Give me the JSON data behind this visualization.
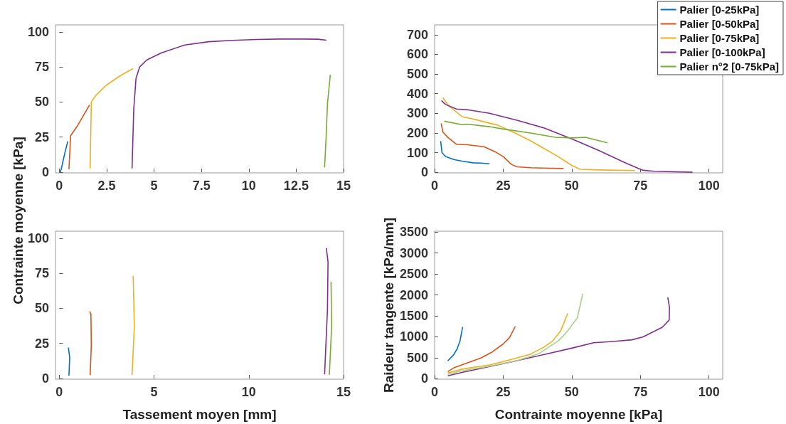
{
  "chart_data": [
    {
      "type": "line",
      "marker": "none",
      "legend": false,
      "xlim": [
        -0.2,
        15
      ],
      "xticks": [
        0,
        2.5,
        5,
        7.5,
        10,
        12.5,
        15
      ],
      "ylim": [
        -0.5,
        105
      ],
      "yticks": [
        0,
        25,
        50,
        75,
        100
      ],
      "series": [
        {
          "color": "#0072bd",
          "x": [
            0.05,
            0.1,
            0.2,
            0.3,
            0.45
          ],
          "values": [
            0,
            2,
            8,
            14,
            22
          ]
        },
        {
          "color": "#d95319",
          "x": [
            0.51,
            0.6,
            0.98,
            1.6
          ],
          "values": [
            2,
            26,
            33.5,
            48
          ]
        },
        {
          "color": "#edb120",
          "x": [
            1.63,
            1.69,
            1.92,
            2.48,
            3.24,
            3.89
          ],
          "values": [
            2.7,
            50,
            54.6,
            62,
            69,
            73.8
          ]
        },
        {
          "color": "#7e2f8e",
          "x": [
            3.84,
            3.93,
            4.05,
            4.24,
            4.62,
            5.37,
            6.63,
            7.88,
            9.13,
            10.4,
            11.6,
            12.9,
            13.65,
            14.09
          ],
          "values": [
            2.7,
            45,
            67,
            75,
            80,
            85,
            90.7,
            93,
            94,
            94.6,
            94.9,
            94.9,
            94.8,
            94.1
          ]
        },
        {
          "color": "#77ac30",
          "x": [
            14.0,
            14.09,
            14.15,
            14.3
          ],
          "values": [
            3.4,
            28,
            48.7,
            69.4
          ]
        }
      ]
    },
    {
      "type": "line",
      "marker": "none",
      "legend": "top right",
      "xlim": [
        0,
        105
      ],
      "xticks": [
        0,
        25,
        50,
        75,
        100
      ],
      "ylim": [
        -3,
        750
      ],
      "yticks": [
        0,
        100,
        200,
        300,
        400,
        500,
        600,
        700
      ],
      "series": [
        {
          "name": "Palier [0-25kPa]",
          "color": "#0072bd",
          "x": [
            2.2,
            2.7,
            4,
            7,
            10,
            14,
            17,
            20
          ],
          "values": [
            159,
            100,
            80,
            65,
            57,
            48,
            47,
            43
          ]
        },
        {
          "name": "Palier [0-50kPa]",
          "color": "#d95319",
          "x": [
            2.4,
            3,
            5,
            8,
            12,
            18,
            22,
            25,
            28,
            30,
            35,
            47
          ],
          "values": [
            248,
            205,
            175,
            142,
            140,
            130,
            105,
            80,
            40,
            28,
            23,
            19
          ]
        },
        {
          "name": "Palier [0-75kPa]",
          "color": "#edb120",
          "x": [
            3,
            5,
            10,
            15,
            20,
            23,
            30,
            35,
            40,
            45,
            50,
            53,
            60,
            73
          ],
          "values": [
            380,
            340,
            283,
            268,
            250,
            240,
            195,
            160,
            120,
            80,
            35,
            15,
            12,
            9
          ]
        },
        {
          "name": "Palier [0-100kPa]",
          "color": "#7e2f8e",
          "x": [
            2.5,
            4,
            8,
            12,
            20,
            30,
            40,
            50,
            60,
            70,
            76,
            80,
            94
          ],
          "values": [
            365,
            345,
            322,
            318,
            300,
            265,
            225,
            170,
            110,
            45,
            10,
            5,
            0
          ]
        },
        {
          "name": "Palier n°2 [0-75kPa]",
          "color": "#77ac30",
          "x": [
            3.5,
            10,
            12,
            20,
            25,
            35,
            44,
            50,
            55,
            63
          ],
          "values": [
            260,
            242,
            245,
            232,
            220,
            200,
            178,
            175,
            178,
            150
          ]
        }
      ]
    },
    {
      "type": "line",
      "marker": "none",
      "legend": false,
      "xlabel": "Tassement moyen [mm]",
      "ylabel": "Contrainte moyenne [kPa]",
      "xlim": [
        -0.2,
        15
      ],
      "xticks": [
        0,
        5,
        10,
        15
      ],
      "ylim": [
        -0.5,
        105
      ],
      "yticks": [
        0,
        25,
        50,
        75,
        100
      ],
      "series": [
        {
          "color": "#0072bd",
          "x": [
            0.51,
            0.55,
            0.48
          ],
          "values": [
            2,
            15,
            22
          ]
        },
        {
          "color": "#d95319",
          "x": [
            1.63,
            1.69,
            1.67,
            1.6
          ],
          "values": [
            2.4,
            23.7,
            45.8,
            47.8
          ]
        },
        {
          "color": "#edb120",
          "x": [
            3.84,
            3.96,
            3.9
          ],
          "values": [
            2.4,
            37,
            73.2
          ]
        },
        {
          "color": "#7e2f8e",
          "x": [
            14.0,
            14.15,
            14.18,
            14.09
          ],
          "values": [
            3,
            49,
            83,
            93
          ]
        },
        {
          "color": "#77ac30",
          "x": [
            14.25,
            14.37,
            14.34
          ],
          "values": [
            2.7,
            37,
            69
          ]
        }
      ]
    },
    {
      "type": "line",
      "marker": "none",
      "legend": false,
      "xlabel": "Contrainte moyenne [kPa]",
      "ylabel": "Raideur tangente [kPa/mm]",
      "xlim": [
        0,
        105
      ],
      "xticks": [
        0,
        25,
        50,
        75,
        100
      ],
      "ylim": [
        -10,
        3520
      ],
      "yticks": [
        0,
        500,
        1000,
        1500,
        2000,
        2500,
        3000,
        3500
      ],
      "series": [
        {
          "color": "#0072bd",
          "x": [
            4.8,
            6.9,
            8.2,
            9.3,
            10.2
          ],
          "values": [
            427,
            569,
            711,
            911,
            1235
          ]
        },
        {
          "color": "#d95319",
          "x": [
            4.8,
            7,
            12,
            17,
            21,
            25,
            27.3,
            29.4
          ],
          "values": [
            170,
            260,
            380,
            500,
            640,
            830,
            980,
            1250
          ]
        },
        {
          "color": "#edb120",
          "x": [
            4.8,
            10,
            20,
            28,
            35,
            40,
            43,
            46,
            48.5
          ],
          "values": [
            140,
            230,
            330,
            460,
            590,
            760,
            900,
            1150,
            1560
          ]
        },
        {
          "color": "#7e2f8e",
          "x": [
            4.8,
            10,
            20,
            30,
            40,
            50,
            58,
            65,
            72,
            76,
            83,
            85.5,
            85.6,
            85
          ],
          "values": [
            70,
            150,
            290,
            430,
            580,
            730,
            860,
            890,
            930,
            1000,
            1230,
            1400,
            1700,
            1940
          ]
        },
        {
          "color": "#a9d18e",
          "x": [
            4.8,
            10,
            20,
            30,
            38,
            45,
            48,
            52,
            54
          ],
          "values": [
            110,
            190,
            300,
            430,
            600,
            900,
            1100,
            1450,
            2030
          ]
        }
      ]
    }
  ]
}
